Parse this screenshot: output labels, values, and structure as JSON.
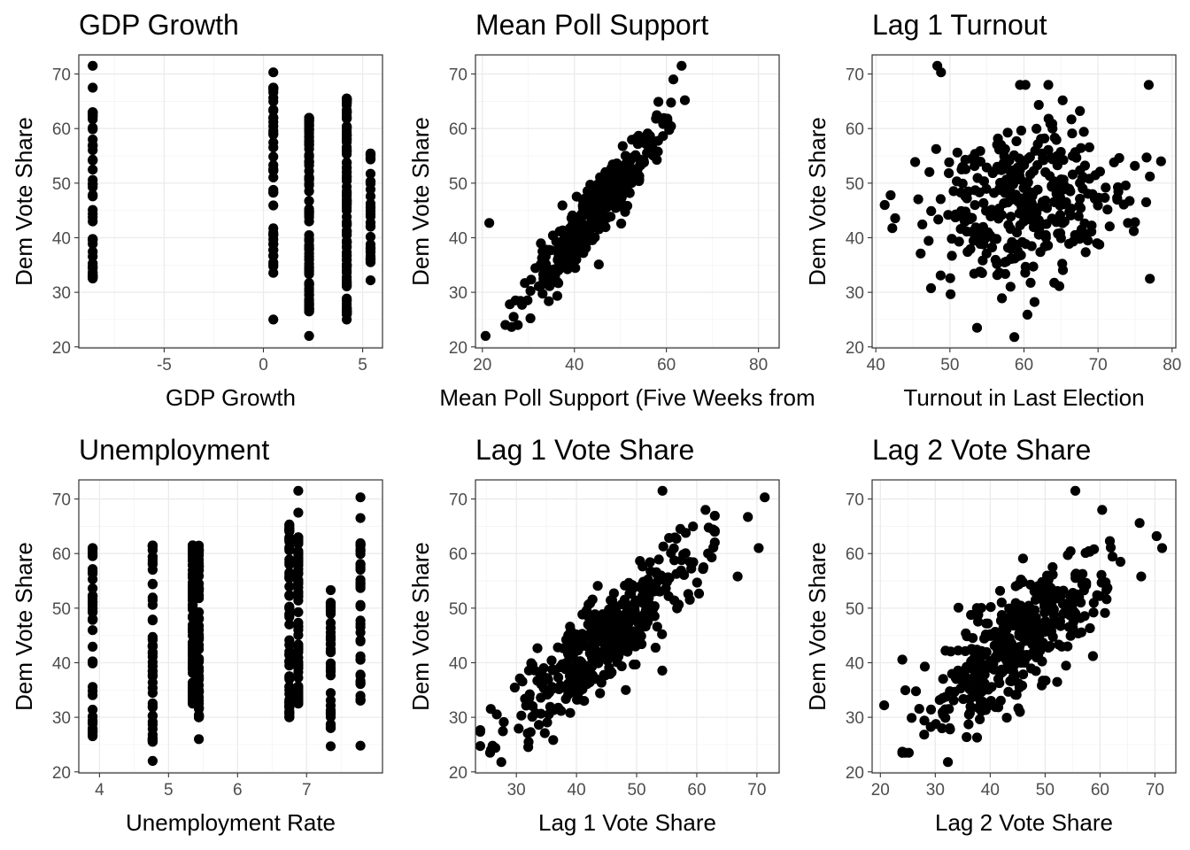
{
  "chart_data": [
    {
      "type": "scatter",
      "title": "GDP Growth",
      "xlabel": "GDP Growth",
      "ylabel": "Dem Vote Share",
      "xlim": [
        -9.3,
        6.0
      ],
      "ylim": [
        19.8,
        73.5
      ],
      "xticks": [
        -5,
        0,
        5
      ],
      "yticks": [
        20,
        30,
        40,
        50,
        60,
        70
      ],
      "grid": true,
      "points": {
        "mode": "strips",
        "strips": [
          {
            "x": -8.6,
            "n": 50,
            "ymin": 32.5,
            "ymax": 63,
            "extra": [
              67.5,
              71.5
            ]
          },
          {
            "x": 0.5,
            "n": 45,
            "ymin": 33.5,
            "ymax": 67.5,
            "extra": [
              70.3,
              25
            ]
          },
          {
            "x": 2.3,
            "n": 85,
            "ymin": 26.5,
            "ymax": 62,
            "extra": [
              22
            ]
          },
          {
            "x": 4.2,
            "n": 140,
            "ymin": 26,
            "ymax": 65.5,
            "extra": [
              25
            ]
          },
          {
            "x": 5.4,
            "n": 45,
            "ymin": 35.5,
            "ymax": 55.5,
            "extra": [
              32.2
            ]
          }
        ]
      }
    },
    {
      "type": "scatter",
      "title": "Mean Poll Support",
      "xlabel": "Mean Poll Support (Five Weeks from",
      "ylabel": "Dem Vote Share",
      "xlim": [
        18.5,
        84.5
      ],
      "ylim": [
        19.8,
        73.5
      ],
      "xticks": [
        20,
        40,
        60,
        80
      ],
      "yticks": [
        20,
        30,
        40,
        50,
        60,
        70
      ],
      "grid": true,
      "points": {
        "mode": "cloud",
        "n": 420,
        "x_mean": 44.5,
        "x_sd": 6.8,
        "x_min": 25,
        "x_max": 61,
        "slope": 1.0,
        "intercept": 0.3,
        "noise": 2.6,
        "extra": [
          [
            20.7,
            22
          ],
          [
            21.5,
            42.7
          ],
          [
            63.3,
            71.5
          ],
          [
            64,
            65.2
          ],
          [
            45.3,
            35.1
          ],
          [
            61.5,
            69
          ]
        ]
      }
    },
    {
      "type": "scatter",
      "title": "Lag 1 Turnout",
      "xlabel": "Turnout in Last Election",
      "ylabel": "Dem Vote Share",
      "xlim": [
        39.5,
        80.5
      ],
      "ylim": [
        19.8,
        73.5
      ],
      "xticks": [
        40,
        50,
        60,
        70,
        80
      ],
      "yticks": [
        20,
        30,
        40,
        50,
        60,
        70
      ],
      "grid": true,
      "points": {
        "mode": "cloud",
        "n": 360,
        "x_mean": 60.5,
        "x_sd": 6.8,
        "x_min": 42,
        "x_max": 77,
        "slope": 0.28,
        "intercept": 29.5,
        "noise": 7.8,
        "extra": [
          [
            48.3,
            71.5
          ],
          [
            48.8,
            70.3
          ],
          [
            58.7,
            21.8
          ],
          [
            76.5,
            46.5
          ],
          [
            78.5,
            54
          ],
          [
            41.2,
            46
          ]
        ]
      }
    },
    {
      "type": "scatter",
      "title": "Unemployment",
      "xlabel": "Unemployment Rate",
      "ylabel": "Dem Vote Share",
      "xlim": [
        3.7,
        8.1
      ],
      "ylim": [
        19.8,
        73.5
      ],
      "xticks": [
        4,
        5,
        6,
        7
      ],
      "yticks": [
        20,
        30,
        40,
        50,
        60,
        70
      ],
      "grid": true,
      "points": {
        "mode": "strips",
        "strips": [
          {
            "x": 3.9,
            "n": 45,
            "ymin": 26.5,
            "ymax": 61,
            "extra": []
          },
          {
            "x": 4.77,
            "n": 55,
            "ymin": 25.5,
            "ymax": 61.5,
            "extra": [
              22
            ]
          },
          {
            "x": 5.35,
            "n": 110,
            "ymin": 32.5,
            "ymax": 61.5,
            "extra": []
          },
          {
            "x": 5.44,
            "n": 60,
            "ymin": 30,
            "ymax": 61.5,
            "extra": [
              26
            ]
          },
          {
            "x": 6.75,
            "n": 70,
            "ymin": 30,
            "ymax": 65.5,
            "extra": []
          },
          {
            "x": 6.88,
            "n": 70,
            "ymin": 32.5,
            "ymax": 63,
            "extra": [
              67.5,
              71.5
            ]
          },
          {
            "x": 7.35,
            "n": 45,
            "ymin": 28,
            "ymax": 51,
            "extra": [
              53.3,
              24.7
            ]
          },
          {
            "x": 7.78,
            "n": 45,
            "ymin": 33,
            "ymax": 62,
            "extra": [
              66.5,
              70.3,
              24.8
            ]
          }
        ]
      }
    },
    {
      "type": "scatter",
      "title": "Lag 1 Vote Share",
      "xlabel": "Lag 1 Vote Share",
      "ylabel": "Dem Vote Share",
      "xlim": [
        23.2,
        73.7
      ],
      "ylim": [
        19.8,
        73.5
      ],
      "xticks": [
        30,
        40,
        50,
        60,
        70
      ],
      "yticks": [
        20,
        30,
        40,
        50,
        60,
        70
      ],
      "grid": true,
      "points": {
        "mode": "cloud",
        "n": 430,
        "x_mean": 45,
        "x_sd": 7.8,
        "x_min": 24,
        "x_max": 63,
        "slope": 0.88,
        "intercept": 5.2,
        "noise": 4.3,
        "extra": [
          [
            27.5,
            21.8
          ],
          [
            54.3,
            71.5
          ],
          [
            71.3,
            70.3
          ],
          [
            70.3,
            61
          ],
          [
            68.5,
            66.7
          ],
          [
            66.8,
            55.8
          ]
        ]
      }
    },
    {
      "type": "scatter",
      "title": "Lag 2 Vote Share",
      "xlabel": "Lag 2 Vote Share",
      "ylabel": "Dem Vote Share",
      "xlim": [
        18.5,
        73.8
      ],
      "ylim": [
        19.8,
        73.5
      ],
      "xticks": [
        20,
        30,
        40,
        50,
        60,
        70
      ],
      "yticks": [
        20,
        30,
        40,
        50,
        60,
        70
      ],
      "grid": true,
      "points": {
        "mode": "cloud",
        "n": 430,
        "x_mean": 45,
        "x_sd": 8.2,
        "x_min": 24,
        "x_max": 64,
        "slope": 0.78,
        "intercept": 9.0,
        "noise": 5.0,
        "extra": [
          [
            20.7,
            32.2
          ],
          [
            32.3,
            21.8
          ],
          [
            55.5,
            71.5
          ],
          [
            71.3,
            61
          ],
          [
            70.3,
            63.2
          ],
          [
            67.2,
            65.6
          ],
          [
            67.5,
            55.8
          ]
        ]
      }
    }
  ]
}
